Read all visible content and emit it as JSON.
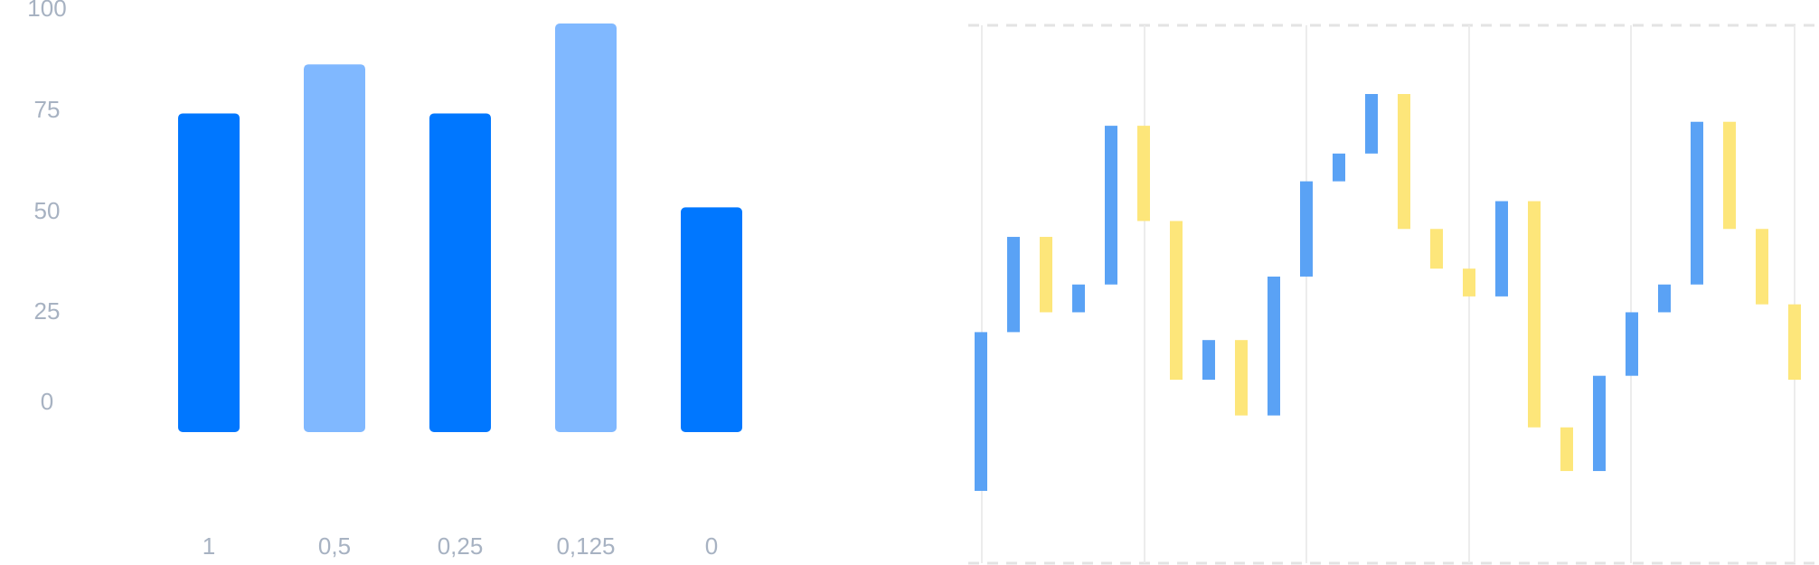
{
  "chart_data": [
    {
      "type": "bar",
      "categories": [
        "1",
        "0,5",
        "0,25",
        "0,125",
        "0"
      ],
      "values": [
        78,
        90,
        78,
        100,
        55
      ],
      "y_ticks": [
        "100",
        "75",
        "50",
        "25",
        "0"
      ],
      "ylim": [
        0,
        100
      ],
      "grid": false,
      "colors": [
        "#0077ff",
        "#80b8ff",
        "#0077ff",
        "#80b8ff",
        "#0077ff"
      ]
    },
    {
      "type": "waterfall",
      "grid": true,
      "colors": {
        "increase": "#5aa2f5",
        "decrease": "#fde67a"
      },
      "steps": [
        {
          "from": -20,
          "to": 20,
          "dir": "up"
        },
        {
          "from": 20,
          "to": 44,
          "dir": "up"
        },
        {
          "from": 44,
          "to": 25,
          "dir": "down"
        },
        {
          "from": 25,
          "to": 32,
          "dir": "up"
        },
        {
          "from": 32,
          "to": 72,
          "dir": "up"
        },
        {
          "from": 72,
          "to": 48,
          "dir": "down"
        },
        {
          "from": 48,
          "to": 8,
          "dir": "down"
        },
        {
          "from": 8,
          "to": 18,
          "dir": "up"
        },
        {
          "from": 18,
          "to": -1,
          "dir": "down"
        },
        {
          "from": -1,
          "to": 34,
          "dir": "up"
        },
        {
          "from": 34,
          "to": 58,
          "dir": "up"
        },
        {
          "from": 58,
          "to": 65,
          "dir": "up"
        },
        {
          "from": 65,
          "to": 80,
          "dir": "up"
        },
        {
          "from": 80,
          "to": 46,
          "dir": "down"
        },
        {
          "from": 46,
          "to": 36,
          "dir": "down"
        },
        {
          "from": 36,
          "to": 29,
          "dir": "down"
        },
        {
          "from": 29,
          "to": 53,
          "dir": "up"
        },
        {
          "from": 53,
          "to": -4,
          "dir": "down"
        },
        {
          "from": -4,
          "to": -15,
          "dir": "down"
        },
        {
          "from": -15,
          "to": 9,
          "dir": "up"
        },
        {
          "from": 9,
          "to": 25,
          "dir": "up"
        },
        {
          "from": 25,
          "to": 32,
          "dir": "up"
        },
        {
          "from": 32,
          "to": 73,
          "dir": "up"
        },
        {
          "from": 73,
          "to": 46,
          "dir": "down"
        },
        {
          "from": 46,
          "to": 27,
          "dir": "down"
        },
        {
          "from": 27,
          "to": 8,
          "dir": "down"
        }
      ]
    }
  ]
}
